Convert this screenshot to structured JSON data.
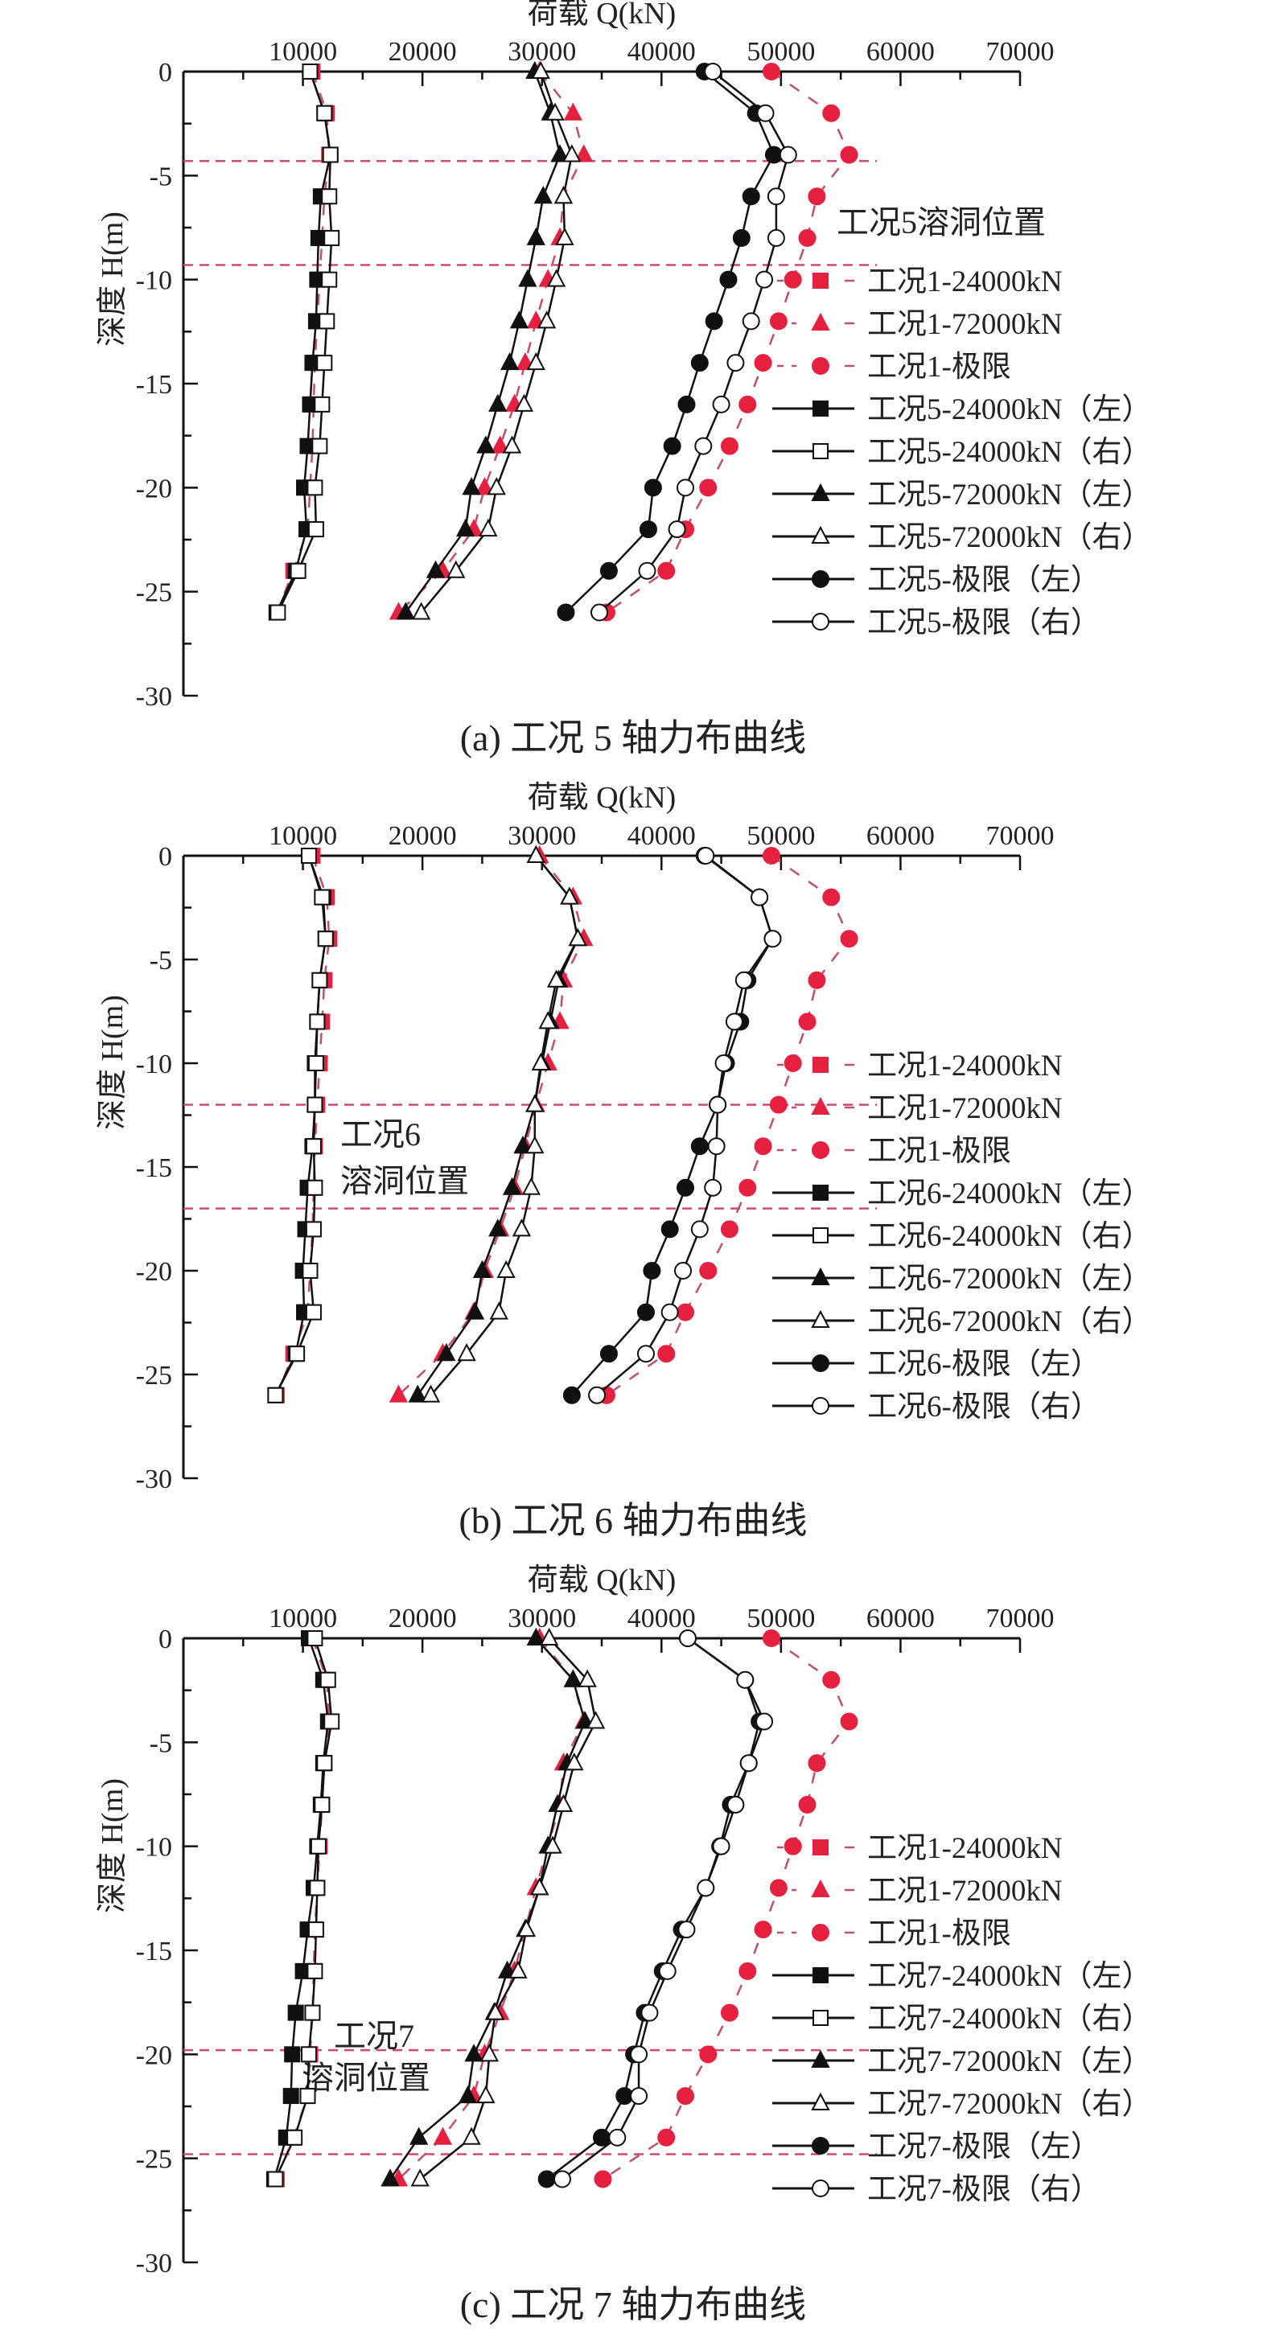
{
  "colors": {
    "case1": "#e6213f",
    "case1_line": "#c0506a",
    "cavity_line": "#d04a6e",
    "axis": "#111111"
  },
  "chart_data": [
    {
      "type": "line",
      "caption": "(a) 工况 5 轴力布曲线",
      "xlabel": "荷载 Q(kN)",
      "ylabel": "深度 H(m)",
      "xlim": [
        0,
        70000
      ],
      "ylim": [
        -30,
        0
      ],
      "xticks": [
        "10000",
        "20000",
        "30000",
        "40000",
        "50000",
        "60000",
        "70000"
      ],
      "yticks": [
        "0",
        "-5",
        "-10",
        "-15",
        "-20",
        "-25",
        "-30"
      ],
      "legend_position": "right",
      "cavity_label": [
        "工况5溶洞位置"
      ],
      "cavity_depths": [
        -4.3,
        -9.3
      ],
      "depths": [
        0,
        -2,
        -4,
        -6,
        -8,
        -10,
        -12,
        -14,
        -16,
        -18,
        -20,
        -22,
        -24,
        -26
      ],
      "series": [
        {
          "name": "工况1-24000kN",
          "marker": "square",
          "style": "case1",
          "x": [
            10800,
            12000,
            12200,
            11800,
            11600,
            11400,
            11200,
            11000,
            10900,
            10800,
            10600,
            10400,
            9200,
            7800
          ]
        },
        {
          "name": "工况1-72000kN",
          "marker": "triangle",
          "style": "case1",
          "x": [
            29800,
            32600,
            33500,
            31800,
            31500,
            30500,
            29500,
            28600,
            27700,
            26500,
            25200,
            24300,
            21700,
            18000
          ]
        },
        {
          "name": "工况1-极限",
          "marker": "circle",
          "style": "case1",
          "x": [
            49200,
            54200,
            55700,
            53000,
            52200,
            51000,
            49800,
            48500,
            47200,
            45700,
            43900,
            42000,
            40400,
            35400
          ]
        },
        {
          "name": "工况5-24000kN（左）",
          "marker": "square",
          "style": "filled",
          "x": [
            10600,
            11800,
            12300,
            11500,
            11300,
            11200,
            11100,
            10800,
            10600,
            10400,
            10100,
            10300,
            9400,
            7800
          ]
        },
        {
          "name": "工况5-24000kN（右）",
          "marker": "square",
          "style": "open",
          "x": [
            10600,
            11800,
            12300,
            12200,
            12400,
            12200,
            12000,
            11800,
            11600,
            11400,
            11000,
            11100,
            9600,
            7900
          ]
        },
        {
          "name": "工况5-72000kN（左）",
          "marker": "triangle",
          "style": "filled",
          "x": [
            29400,
            30700,
            31500,
            30100,
            29500,
            28800,
            28100,
            27300,
            26300,
            25300,
            24100,
            23600,
            21100,
            18600
          ]
        },
        {
          "name": "工况5-72000kN（右）",
          "marker": "triangle",
          "style": "open",
          "x": [
            29900,
            31100,
            32500,
            31800,
            31900,
            31200,
            30400,
            29500,
            28500,
            27500,
            26200,
            25500,
            22800,
            19900
          ]
        },
        {
          "name": "工况5-极限（左）",
          "marker": "circle",
          "style": "filled",
          "x": [
            43600,
            47900,
            49400,
            47500,
            46700,
            45600,
            44400,
            43200,
            42100,
            40900,
            39300,
            38900,
            35600,
            32000
          ]
        },
        {
          "name": "工况5-极限（右）",
          "marker": "circle",
          "style": "open",
          "x": [
            44300,
            48700,
            50600,
            49600,
            49600,
            48600,
            47500,
            46200,
            45000,
            43500,
            42000,
            41300,
            38800,
            34800
          ]
        }
      ]
    },
    {
      "type": "line",
      "caption": "(b) 工况 6 轴力布曲线",
      "xlabel": "荷载 Q(kN)",
      "ylabel": "深度 H(m)",
      "xlim": [
        0,
        70000
      ],
      "ylim": [
        -30,
        0
      ],
      "xticks": [
        "10000",
        "20000",
        "30000",
        "40000",
        "50000",
        "60000",
        "70000"
      ],
      "yticks": [
        "0",
        "-5",
        "-10",
        "-15",
        "-20",
        "-25",
        "-30"
      ],
      "legend_position": "right",
      "cavity_label": [
        "工况6",
        "溶洞位置"
      ],
      "cavity_depths": [
        -12,
        -17
      ],
      "depths": [
        0,
        -2,
        -4,
        -6,
        -8,
        -10,
        -12,
        -14,
        -16,
        -18,
        -20,
        -22,
        -24,
        -26
      ],
      "series": [
        {
          "name": "工况1-24000kN",
          "marker": "square",
          "style": "case1",
          "x": [
            10800,
            12000,
            12200,
            11800,
            11600,
            11400,
            11200,
            11000,
            10900,
            10800,
            10600,
            10400,
            9200,
            7800
          ]
        },
        {
          "name": "工况1-72000kN",
          "marker": "triangle",
          "style": "case1",
          "x": [
            29800,
            32600,
            33500,
            31800,
            31500,
            30500,
            29500,
            28600,
            27700,
            26500,
            25200,
            24300,
            21700,
            18000
          ]
        },
        {
          "name": "工况1-极限",
          "marker": "circle",
          "style": "case1",
          "x": [
            49200,
            54200,
            55700,
            53000,
            52200,
            51000,
            49800,
            48500,
            47200,
            45700,
            43900,
            42000,
            40400,
            35400
          ]
        },
        {
          "name": "工况6-24000kN（左）",
          "marker": "square",
          "style": "filled",
          "x": [
            10500,
            11700,
            11900,
            11400,
            11200,
            11000,
            11000,
            10800,
            10400,
            10200,
            10000,
            10100,
            9400,
            7700
          ]
        },
        {
          "name": "工况6-24000kN（右）",
          "marker": "square",
          "style": "open",
          "x": [
            10500,
            11600,
            11900,
            11400,
            11200,
            11100,
            11000,
            10900,
            11000,
            10900,
            10600,
            10900,
            9500,
            7700
          ]
        },
        {
          "name": "工况6-72000kN（左）",
          "marker": "triangle",
          "style": "filled",
          "x": [
            29500,
            32300,
            33000,
            31400,
            30700,
            30000,
            29400,
            28400,
            27500,
            26300,
            25000,
            24400,
            22000,
            19600
          ]
        },
        {
          "name": "工况6-72000kN（右）",
          "marker": "triangle",
          "style": "open",
          "x": [
            29500,
            32300,
            33000,
            31200,
            30500,
            29900,
            29400,
            29400,
            29100,
            28300,
            27000,
            26400,
            23700,
            20700
          ]
        },
        {
          "name": "工况6-极限（左）",
          "marker": "circle",
          "style": "filled",
          "x": [
            43600,
            48200,
            49300,
            47200,
            46600,
            45400,
            44700,
            43200,
            42000,
            40700,
            39200,
            38700,
            35600,
            32500
          ]
        },
        {
          "name": "工况6-极限（右）",
          "marker": "circle",
          "style": "open",
          "x": [
            43700,
            48200,
            49300,
            46900,
            46100,
            45200,
            44700,
            44600,
            44300,
            43200,
            41800,
            40700,
            38700,
            34600
          ]
        }
      ]
    },
    {
      "type": "line",
      "caption": "(c) 工况 7 轴力布曲线",
      "xlabel": "荷载 Q(kN)",
      "ylabel": "深度 H(m)",
      "xlim": [
        0,
        70000
      ],
      "ylim": [
        -30,
        0
      ],
      "xticks": [
        "10000",
        "20000",
        "30000",
        "40000",
        "50000",
        "60000",
        "70000"
      ],
      "yticks": [
        "0",
        "-5",
        "-10",
        "-15",
        "-20",
        "-25",
        "-30"
      ],
      "legend_position": "right",
      "cavity_label": [
        "工况7",
        "溶洞位置"
      ],
      "cavity_depths": [
        -19.8,
        -24.8
      ],
      "depths": [
        0,
        -2,
        -4,
        -6,
        -8,
        -10,
        -12,
        -14,
        -16,
        -18,
        -20,
        -22,
        -24,
        -26
      ],
      "series": [
        {
          "name": "工况1-24000kN",
          "marker": "square",
          "style": "case1",
          "x": [
            10800,
            12000,
            12200,
            11800,
            11600,
            11400,
            11200,
            11000,
            10900,
            10800,
            10600,
            10400,
            9200,
            7800
          ]
        },
        {
          "name": "工况1-72000kN",
          "marker": "triangle",
          "style": "case1",
          "x": [
            29800,
            32600,
            33500,
            31800,
            31500,
            30500,
            29500,
            28600,
            27700,
            26500,
            25200,
            24300,
            21700,
            18000
          ]
        },
        {
          "name": "工况1-极限",
          "marker": "circle",
          "style": "case1",
          "x": [
            49200,
            54200,
            55700,
            53000,
            52200,
            51000,
            49800,
            48500,
            47200,
            45700,
            43900,
            42000,
            40400,
            35100
          ]
        },
        {
          "name": "工况7-24000kN（左）",
          "marker": "square",
          "style": "filled",
          "x": [
            10500,
            11700,
            12100,
            11700,
            11500,
            11200,
            10900,
            10400,
            10000,
            9400,
            9100,
            9000,
            8600,
            7600
          ]
        },
        {
          "name": "工况7-24000kN（右）",
          "marker": "square",
          "style": "open",
          "x": [
            11000,
            12100,
            12400,
            11800,
            11600,
            11300,
            11200,
            11100,
            11000,
            10800,
            10500,
            10400,
            9300,
            7700
          ]
        },
        {
          "name": "工况7-72000kN（左）",
          "marker": "triangle",
          "style": "filled",
          "x": [
            29500,
            32600,
            33600,
            32100,
            31300,
            30500,
            29800,
            28600,
            27100,
            26000,
            24300,
            23800,
            19700,
            17300
          ]
        },
        {
          "name": "工况7-72000kN（右）",
          "marker": "triangle",
          "style": "open",
          "x": [
            30600,
            33800,
            34500,
            32700,
            31800,
            30900,
            29800,
            28700,
            28000,
            26100,
            25600,
            25300,
            24100,
            19800
          ]
        },
        {
          "name": "工况7-极限（左）",
          "marker": "circle",
          "style": "filled",
          "x": [
            42200,
            47000,
            48200,
            47300,
            45800,
            44900,
            43700,
            41700,
            40100,
            38600,
            37700,
            36900,
            35000,
            30400
          ]
        },
        {
          "name": "工况7-极限（右）",
          "marker": "circle",
          "style": "open",
          "x": [
            42200,
            47000,
            48600,
            47300,
            46200,
            45000,
            43700,
            42100,
            40500,
            39000,
            38100,
            38100,
            36300,
            31700
          ]
        }
      ]
    }
  ]
}
